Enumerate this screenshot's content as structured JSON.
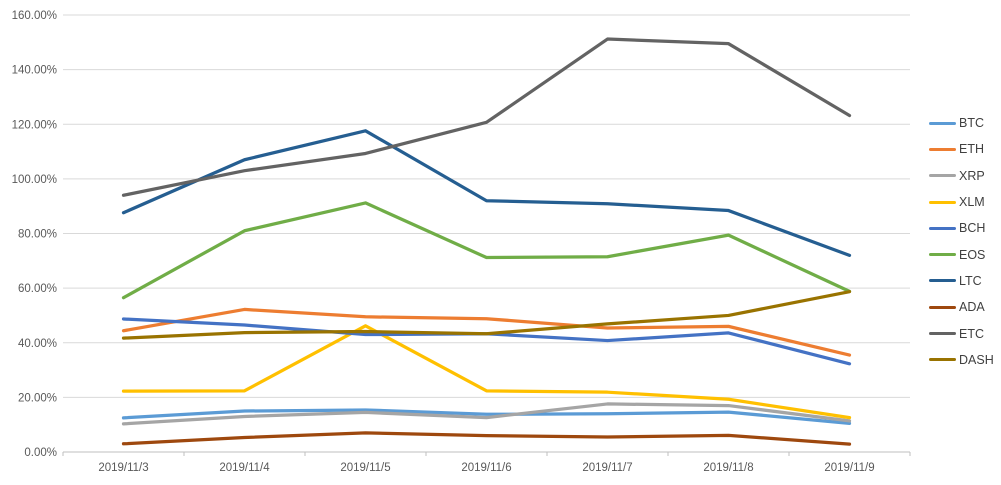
{
  "chart_data": {
    "type": "line",
    "title": "",
    "xlabel": "",
    "ylabel": "",
    "categories": [
      "2019/11/3",
      "2019/11/4",
      "2019/11/5",
      "2019/11/6",
      "2019/11/7",
      "2019/11/8",
      "2019/11/9"
    ],
    "y_axis": {
      "unit": "%",
      "ylim": [
        0,
        160
      ],
      "tick_step": 20,
      "tick_labels": [
        "0.00%",
        "20.00%",
        "40.00%",
        "60.00%",
        "80.00%",
        "100.00%",
        "120.00%",
        "140.00%",
        "160.00%"
      ],
      "tick_values": [
        0,
        20,
        40,
        60,
        80,
        100,
        120,
        140,
        160
      ]
    },
    "grid": "horizontal",
    "legend_position": "right",
    "series": [
      {
        "name": "BTC",
        "color": "#5B9BD5",
        "values": [
          12.5,
          15.0,
          15.4,
          13.8,
          14.0,
          14.6,
          10.5
        ]
      },
      {
        "name": "ETH",
        "color": "#ED7D31",
        "values": [
          44.4,
          52.2,
          49.5,
          48.8,
          45.4,
          46.0,
          35.5
        ]
      },
      {
        "name": "XRP",
        "color": "#A5A5A5",
        "values": [
          10.3,
          13.0,
          14.5,
          12.6,
          17.6,
          17.0,
          11.4
        ]
      },
      {
        "name": "XLM",
        "color": "#FFC000",
        "values": [
          22.3,
          22.4,
          46.2,
          22.4,
          21.9,
          19.3,
          12.6
        ]
      },
      {
        "name": "BCH",
        "color": "#4472C4",
        "values": [
          48.7,
          46.5,
          43.0,
          43.3,
          40.8,
          43.6,
          32.3
        ]
      },
      {
        "name": "EOS",
        "color": "#70AD47",
        "values": [
          56.5,
          81.0,
          91.2,
          71.2,
          71.5,
          79.4,
          58.8
        ]
      },
      {
        "name": "LTC",
        "color": "#255E91",
        "values": [
          87.6,
          107.0,
          117.6,
          92.0,
          90.9,
          88.4,
          72.0
        ]
      },
      {
        "name": "ADA",
        "color": "#9E480E",
        "values": [
          3.0,
          5.3,
          7.0,
          6.0,
          5.5,
          6.1,
          2.9
        ]
      },
      {
        "name": "ETC",
        "color": "#636363",
        "values": [
          94.0,
          103.0,
          109.3,
          120.7,
          151.2,
          149.5,
          123.2
        ]
      },
      {
        "name": "DASH",
        "color": "#997300",
        "values": [
          41.7,
          43.7,
          44.1,
          43.3,
          46.9,
          50.0,
          58.7
        ]
      }
    ]
  },
  "style_colors": {
    "gridline": "#D9D9D9",
    "axis_line": "#BFBFBF",
    "axis_label": "#595959",
    "legend_label": "#404040",
    "background": "#FFFFFF"
  }
}
